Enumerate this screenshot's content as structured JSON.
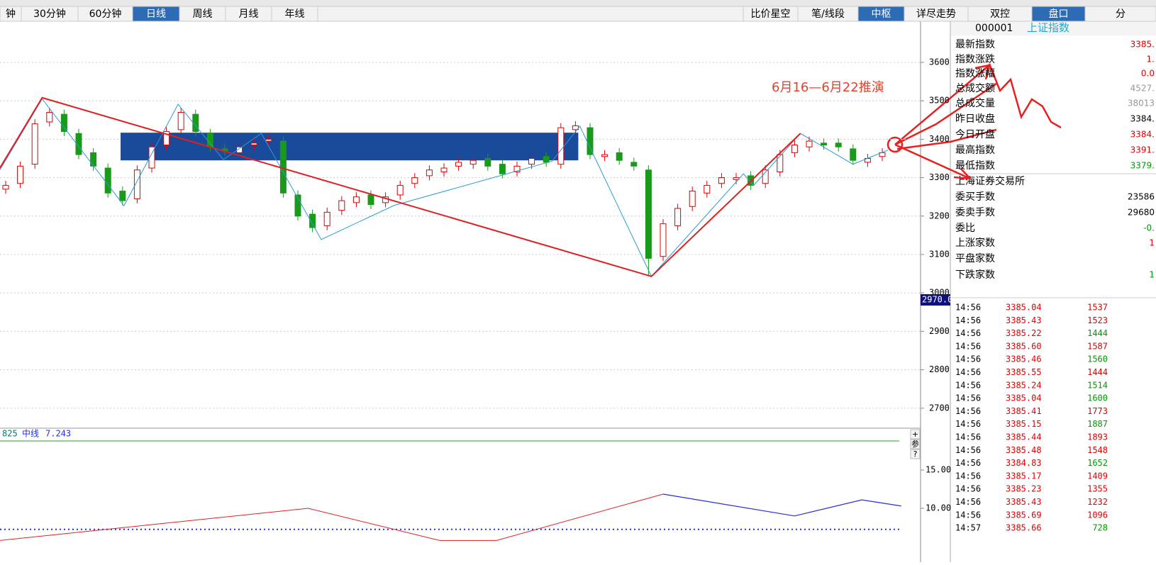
{
  "toolbar": {
    "left_tabs": [
      {
        "label": "钟",
        "active": false
      },
      {
        "label": "30分钟",
        "active": false
      },
      {
        "label": "60分钟",
        "active": false
      },
      {
        "label": "日线",
        "active": true
      },
      {
        "label": "周线",
        "active": false
      },
      {
        "label": "月线",
        "active": false
      },
      {
        "label": "年线",
        "active": false
      }
    ],
    "right_tabs": [
      {
        "label": "比价星空",
        "active": false
      },
      {
        "label": "笔/线段",
        "active": false
      },
      {
        "label": "中枢",
        "active": true
      },
      {
        "label": "详尽走势",
        "active": false
      },
      {
        "label": "双控",
        "active": false
      },
      {
        "label": "盘口",
        "active": true
      },
      {
        "label": "分",
        "active": false
      }
    ]
  },
  "quote": {
    "code": "000001",
    "name": "上证指数",
    "rows": [
      {
        "label": "最新指数",
        "value": "3385.",
        "color": "#e00000"
      },
      {
        "label": "指数涨跌",
        "value": "1.",
        "color": "#e00000"
      },
      {
        "label": "指数涨幅",
        "value": "0.0",
        "color": "#e00000"
      },
      {
        "label": "总成交额",
        "value": "4527.",
        "color": "#999999"
      },
      {
        "label": "总成交量",
        "value": "38013",
        "color": "#999999"
      },
      {
        "label": "昨日收盘",
        "value": "3384.",
        "color": "#000000"
      },
      {
        "label": "今日开盘",
        "value": "3384.",
        "color": "#e00000"
      },
      {
        "label": "最高指数",
        "value": "3391.",
        "color": "#e00000"
      },
      {
        "label": "最低指数",
        "value": "3379.",
        "color": "#009900"
      }
    ],
    "exchange": "上海证券交易所",
    "rows2": [
      {
        "label": "委买手数",
        "value": "23586",
        "color": "#000000"
      },
      {
        "label": "委卖手数",
        "value": "29680",
        "color": "#000000"
      },
      {
        "label": "委比",
        "value": "-0.",
        "color": "#009900"
      },
      {
        "label": "上涨家数",
        "value": "1",
        "color": "#e00000"
      },
      {
        "label": "平盘家数"
      },
      {
        "label": "下跌家数",
        "value": "1",
        "color": "#009900"
      }
    ]
  },
  "ticks": [
    {
      "time": "14:56",
      "price": "3385.04",
      "volume": "1537",
      "color": "#e00000"
    },
    {
      "time": "14:56",
      "price": "3385.43",
      "volume": "1523",
      "color": "#e00000"
    },
    {
      "time": "14:56",
      "price": "3385.22",
      "volume": "1444",
      "color": "#009900"
    },
    {
      "time": "14:56",
      "price": "3385.60",
      "volume": "1587",
      "color": "#e00000"
    },
    {
      "time": "14:56",
      "price": "3385.46",
      "volume": "1560",
      "color": "#009900"
    },
    {
      "time": "14:56",
      "price": "3385.55",
      "volume": "1444",
      "color": "#e00000"
    },
    {
      "time": "14:56",
      "price": "3385.24",
      "volume": "1514",
      "color": "#009900"
    },
    {
      "time": "14:56",
      "price": "3385.04",
      "volume": "1600",
      "color": "#009900"
    },
    {
      "time": "14:56",
      "price": "3385.41",
      "volume": "1773",
      "color": "#e00000"
    },
    {
      "time": "14:56",
      "price": "3385.15",
      "volume": "1887",
      "color": "#009900"
    },
    {
      "time": "14:56",
      "price": "3385.44",
      "volume": "1893",
      "color": "#e00000"
    },
    {
      "time": "14:56",
      "price": "3385.48",
      "volume": "1548",
      "color": "#e00000"
    },
    {
      "time": "14:56",
      "price": "3384.83",
      "volume": "1652",
      "color": "#009900"
    },
    {
      "time": "14:56",
      "price": "3385.17",
      "volume": "1409",
      "color": "#e00000"
    },
    {
      "time": "14:56",
      "price": "3385.23",
      "volume": "1355",
      "color": "#e00000"
    },
    {
      "time": "14:56",
      "price": "3385.43",
      "volume": "1232",
      "color": "#e00000"
    },
    {
      "time": "14:56",
      "price": "3385.69",
      "volume": "1096",
      "color": "#e00000"
    },
    {
      "time": "14:57",
      "price": "3385.66",
      "volume": "728",
      "color": "#009900"
    }
  ],
  "price_axis": {
    "ylim": [
      2648,
      3707
    ],
    "yticks": [
      3600,
      3500,
      3400,
      3300,
      3200,
      3100,
      3000,
      2900,
      2800,
      2700
    ],
    "grid": true
  },
  "price_tag": "2970.0",
  "annotation": "6月16—6月22推演",
  "kline": {
    "up_color": "#e00000",
    "down_color": "#1a9a1a",
    "open": [
      3270,
      3285,
      3335,
      3445,
      3465,
      3415,
      3365,
      3325,
      3265,
      3245,
      3325,
      3385,
      3425,
      3465,
      3415,
      3375,
      3365,
      3385,
      3395,
      3395,
      3255,
      3205,
      3175,
      3215,
      3235,
      3255,
      3235,
      3255,
      3285,
      3305,
      3315,
      3330,
      3335,
      3350,
      3335,
      3315,
      3335,
      3355,
      3335,
      3425,
      3430,
      3355,
      3365,
      3340,
      3320,
      3095,
      3175,
      3225,
      3260,
      3285,
      3295,
      3305,
      3285,
      3315,
      3365,
      3380,
      3390,
      3390,
      3375,
      3340,
      3355
    ],
    "high": [
      3292,
      3342,
      3452,
      3482,
      3477,
      3427,
      3377,
      3337,
      3277,
      3332,
      3392,
      3432,
      3482,
      3477,
      3427,
      3387,
      3392,
      3402,
      3412,
      3407,
      3267,
      3217,
      3222,
      3252,
      3262,
      3267,
      3262,
      3292,
      3312,
      3332,
      3337,
      3352,
      3357,
      3362,
      3347,
      3342,
      3362,
      3367,
      3442,
      3447,
      3442,
      3372,
      3377,
      3352,
      3332,
      3192,
      3232,
      3277,
      3292,
      3312,
      3312,
      3317,
      3332,
      3372,
      3397,
      3407,
      3402,
      3402,
      3387,
      3362,
      3377
    ],
    "low": [
      3258,
      3273,
      3323,
      3433,
      3408,
      3348,
      3318,
      3248,
      3228,
      3233,
      3313,
      3373,
      3413,
      3408,
      3368,
      3358,
      3353,
      3373,
      3383,
      3248,
      3188,
      3158,
      3163,
      3203,
      3223,
      3218,
      3223,
      3243,
      3273,
      3293,
      3303,
      3318,
      3323,
      3318,
      3298,
      3303,
      3323,
      3328,
      3323,
      3413,
      3348,
      3343,
      3333,
      3318,
      3043,
      3083,
      3163,
      3213,
      3248,
      3273,
      3283,
      3268,
      3273,
      3303,
      3353,
      3368,
      3373,
      3368,
      3333,
      3328,
      3343
    ],
    "close": [
      3280,
      3330,
      3440,
      3470,
      3420,
      3360,
      3330,
      3260,
      3240,
      3320,
      3380,
      3420,
      3470,
      3420,
      3380,
      3370,
      3380,
      3390,
      3400,
      3260,
      3200,
      3170,
      3210,
      3240,
      3250,
      3230,
      3250,
      3280,
      3300,
      3320,
      3325,
      3340,
      3345,
      3330,
      3310,
      3330,
      3350,
      3340,
      3430,
      3435,
      3360,
      3360,
      3345,
      3330,
      3090,
      3180,
      3220,
      3265,
      3280,
      3300,
      3300,
      3280,
      3320,
      3360,
      3385,
      3395,
      3385,
      3380,
      3345,
      3350,
      3365
    ],
    "zone": {
      "high": 3417,
      "low": 3345,
      "start": 8.06,
      "end": 39.0,
      "color": "#1a4a9a"
    },
    "bi": {
      "color": "#2a9ad8",
      "i": [
        -0.4,
        2.5,
        8.1,
        11.8,
        14.9,
        17.5,
        21.6,
        26.6,
        37.4,
        39.3,
        44.2,
        50.5,
        51.2,
        54.4,
        58.0,
        60.4
      ],
      "p": [
        3320,
        3505,
        3227,
        3491,
        3347,
        3415,
        3139,
        3228,
        3343,
        3434,
        3043,
        3310,
        3280,
        3415,
        3335,
        3372
      ]
    },
    "segment": {
      "color": "#e02020",
      "i": [
        -0.4,
        2.5,
        44.2,
        54.4
      ],
      "p": [
        3325,
        3508,
        3043,
        3415
      ]
    }
  },
  "indicator": {
    "name": "825",
    "mid_label": "中线",
    "mid_value": 7.243,
    "upper_line": 18.8,
    "ylim": [
      5.74,
      20.37
    ],
    "yticks": [
      {
        "value": 15,
        "label": "15.00"
      },
      {
        "value": 10,
        "label": "10.00"
      }
    ],
    "red": {
      "color": "#e02020",
      "i": [
        -0.4,
        20.7,
        29.7,
        33.6,
        45.0
      ],
      "v": [
        5.8,
        10.0,
        5.8,
        5.8,
        11.85
      ]
    },
    "blue": {
      "color": "#2030e0",
      "i": [
        45.0,
        54.0,
        58.6,
        61.3
      ],
      "v": [
        11.85,
        9.0,
        11.1,
        10.3
      ]
    },
    "side_buttons": [
      "+",
      "参",
      "?"
    ]
  }
}
